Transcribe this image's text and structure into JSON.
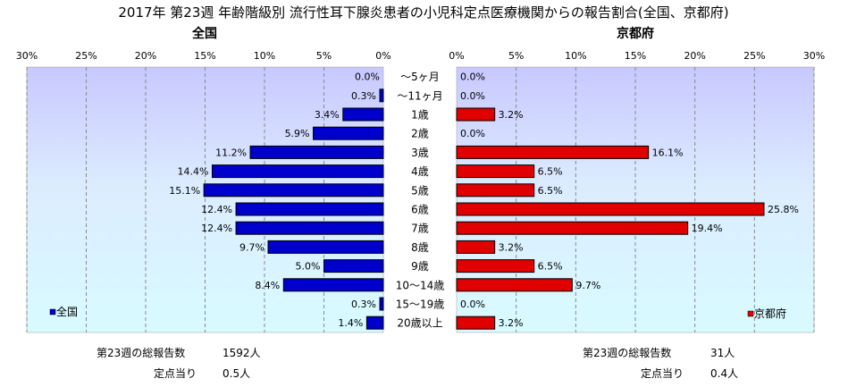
{
  "chart_data": {
    "type": "bar",
    "title": "2017年 第23週 年齢階級別 流行性耳下腺炎患者の小児科定点医療機関からの報告割合(全国、京都府)",
    "categories": [
      "～5ヶ月",
      "～11ヶ月",
      "1歳",
      "2歳",
      "3歳",
      "4歳",
      "5歳",
      "6歳",
      "7歳",
      "8歳",
      "9歳",
      "10～14歳",
      "15～19歳",
      "20歳以上"
    ],
    "series": [
      {
        "name": "全国",
        "panel_title": "全国",
        "color": "#0000cc",
        "values": [
          0.0,
          0.3,
          3.4,
          5.9,
          11.2,
          14.4,
          15.1,
          12.4,
          12.4,
          9.7,
          5.0,
          8.4,
          0.3,
          1.4
        ],
        "labels": [
          "0.0%",
          "0.3%",
          "3.4%",
          "5.9%",
          "11.2%",
          "14.4%",
          "15.1%",
          "12.4%",
          "12.4%",
          "9.7%",
          "5.0%",
          "8.4%",
          "0.3%",
          "1.4%"
        ]
      },
      {
        "name": "京都府",
        "panel_title": "京都府",
        "color": "#e00000",
        "values": [
          0.0,
          0.0,
          3.2,
          0.0,
          16.1,
          6.5,
          6.5,
          25.8,
          19.4,
          3.2,
          6.5,
          9.7,
          0.0,
          3.2
        ],
        "labels": [
          "0.0%",
          "0.0%",
          "3.2%",
          "0.0%",
          "16.1%",
          "6.5%",
          "6.5%",
          "25.8%",
          "19.4%",
          "3.2%",
          "6.5%",
          "9.7%",
          "0.0%",
          "3.2%"
        ]
      }
    ],
    "xlim": [
      0,
      30
    ],
    "ticks": [
      "30%",
      "25%",
      "20%",
      "15%",
      "10%",
      "5%",
      "0%"
    ],
    "ticks_right": [
      "0%",
      "5%",
      "10%",
      "15%",
      "20%",
      "25%",
      "30%"
    ],
    "tick_values": [
      0,
      5,
      10,
      15,
      20,
      25,
      30
    ],
    "xlabel": "",
    "ylabel": "",
    "grid": true,
    "legend_placement": "bottom-left (全国), bottom-right (京都府)"
  },
  "footer": {
    "national": {
      "total_label": "第23週の総報告数",
      "total_value": "1592人",
      "per_label": "定点当り",
      "per_value": "0.5人"
    },
    "kyoto": {
      "total_label": "第23週の総報告数",
      "total_value": "31人",
      "per_label": "定点当り",
      "per_value": "0.4人"
    }
  }
}
